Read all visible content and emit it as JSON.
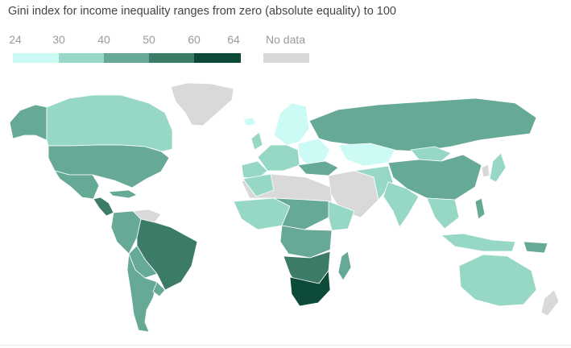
{
  "title": "Gini index for income inequality ranges from zero (absolute equality) to 100",
  "legend": {
    "ticks": [
      "24",
      "30",
      "40",
      "50",
      "60",
      "64"
    ],
    "bins": [
      {
        "from": 24,
        "to": 30,
        "color": "#ccfbf6"
      },
      {
        "from": 30,
        "to": 40,
        "color": "#96d8c5"
      },
      {
        "from": 40,
        "to": 50,
        "color": "#67a997"
      },
      {
        "from": 50,
        "to": 60,
        "color": "#3c7b68"
      },
      {
        "from": 60,
        "to": 64,
        "color": "#0d4a3a"
      }
    ],
    "no_data_label": "No data",
    "no_data_color": "#d9d9d9"
  },
  "colors": {
    "water": "#ffffff",
    "border": "#ffffff"
  }
}
